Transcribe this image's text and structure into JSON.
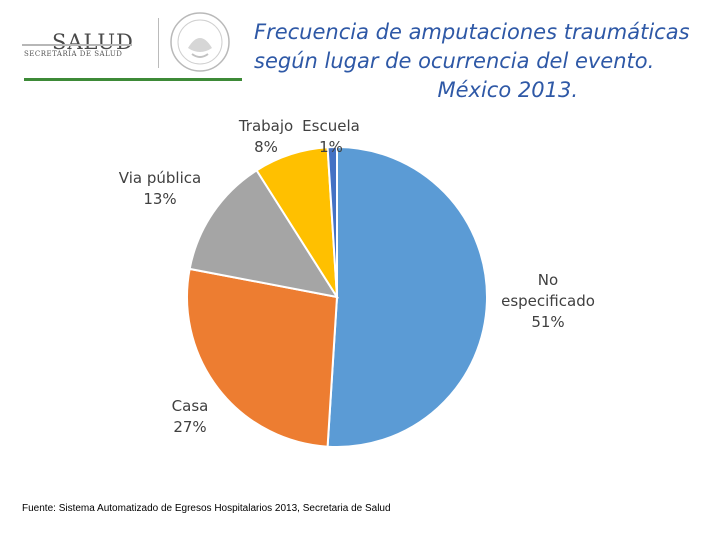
{
  "header": {
    "logo_word": "SALUD",
    "logo_sub": "SECRETARÍA DE SALUD"
  },
  "chart_data": {
    "type": "pie",
    "title": [
      "Frecuencia de amputaciones traumáticas",
      "según lugar de ocurrencia del evento.",
      "México 2013."
    ],
    "slices": [
      {
        "label": "No especificado",
        "label_lines": [
          "No",
          "especificado"
        ],
        "value": 51,
        "pct_label": "51%",
        "color": "#5b9bd5"
      },
      {
        "label": "Casa",
        "label_lines": [
          "Casa"
        ],
        "value": 27,
        "pct_label": "27%",
        "color": "#ed7d31"
      },
      {
        "label": "Via pública",
        "label_lines": [
          "Via pública"
        ],
        "value": 13,
        "pct_label": "13%",
        "color": "#a5a5a5"
      },
      {
        "label": "Trabajo",
        "label_lines": [
          "Trabajo"
        ],
        "value": 8,
        "pct_label": "8%",
        "color": "#ffc000"
      },
      {
        "label": "Escuela",
        "label_lines": [
          "Escuela"
        ],
        "value": 1,
        "pct_label": "1%",
        "color": "#4472c4"
      }
    ],
    "source": "Fuente: Sistema Automatizado de Egresos Hospitalarios 2013, Secretaria de Salud"
  }
}
